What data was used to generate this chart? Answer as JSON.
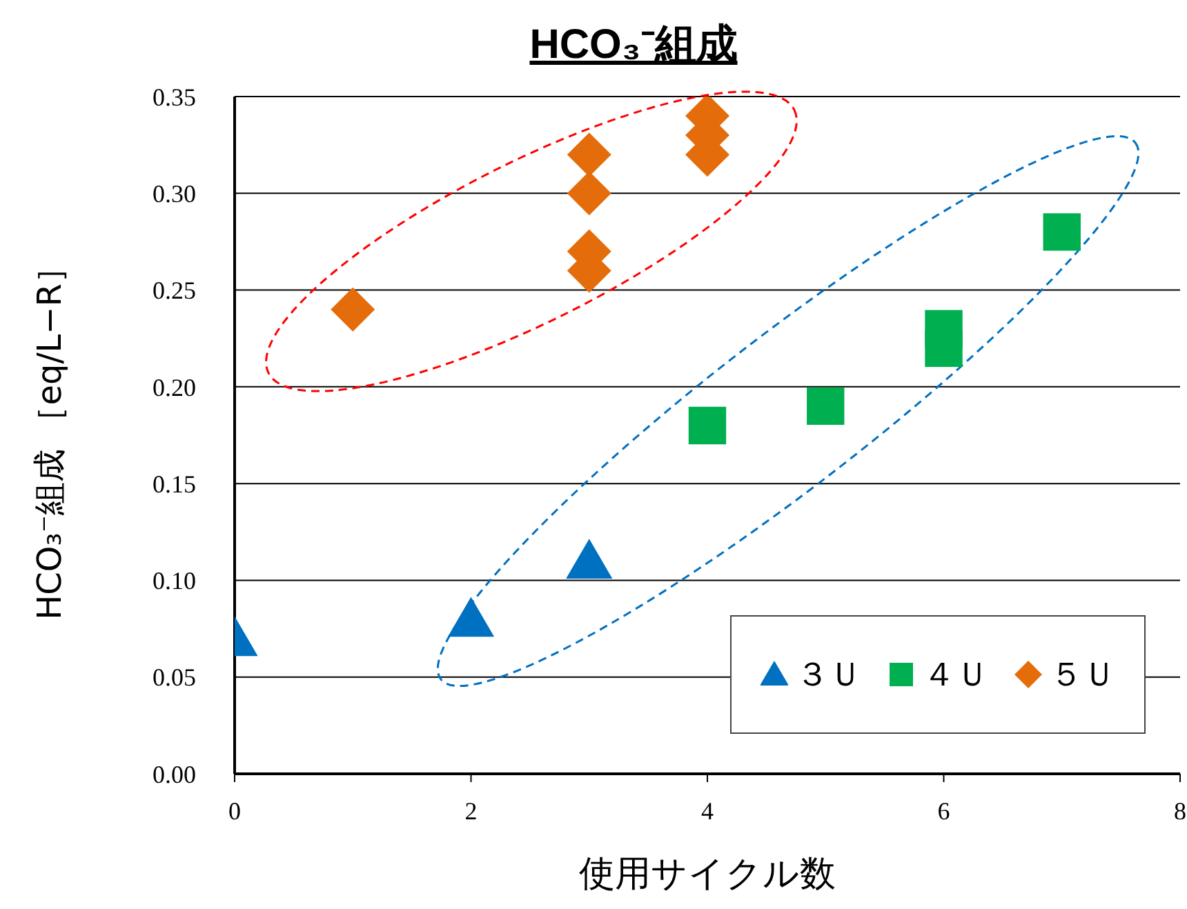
{
  "chart_data": {
    "type": "scatter",
    "title": "HCO₃⁻組成",
    "xlabel": "使用サイクル数",
    "ylabel": "HCO₃⁻組成 ［eq/L−R］",
    "xlim": [
      0,
      8
    ],
    "xticks": [
      0,
      2,
      4,
      6,
      8
    ],
    "ylim": [
      0,
      0.35
    ],
    "yticks": [
      {
        "value": 0,
        "label": "0.00"
      },
      {
        "value": 0.05,
        "label": "0.05"
      },
      {
        "value": 0.1,
        "label": "0.10"
      },
      {
        "value": 0.15,
        "label": "0.15"
      },
      {
        "value": 0.2,
        "label": "0.20"
      },
      {
        "value": 0.25,
        "label": "0.25"
      },
      {
        "value": 0.3,
        "label": "0.30"
      },
      {
        "value": 0.35,
        "label": "0.35"
      }
    ],
    "grid": "y",
    "legend": "bottom right",
    "series": [
      {
        "name": "３Ｕ",
        "color": "#0070c0",
        "marker": "triangle",
        "x": [
          0,
          2,
          3
        ],
        "values": [
          0.07,
          0.08,
          0.11
        ]
      },
      {
        "name": "４Ｕ",
        "color": "#00b050",
        "marker": "square",
        "x": [
          4,
          5,
          6,
          6,
          7
        ],
        "values": [
          0.18,
          0.19,
          0.23,
          0.22,
          0.28
        ]
      },
      {
        "name": "５Ｕ",
        "color": "#e46c0a",
        "marker": "diamond",
        "x": [
          1,
          3,
          3,
          3,
          3,
          4,
          4,
          4
        ],
        "values": [
          0.24,
          0.32,
          0.3,
          0.27,
          0.26,
          0.34,
          0.33,
          0.32
        ]
      }
    ]
  }
}
